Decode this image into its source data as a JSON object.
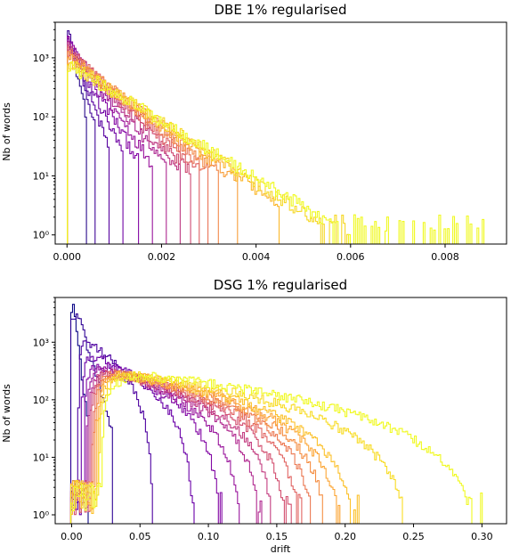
{
  "chart_data": [
    {
      "type": "histogram",
      "title": "DBE 1% regularised",
      "xlabel": "",
      "ylabel": "Nb of words",
      "yscale": "log",
      "xlim": [
        -0.00025,
        0.0093
      ],
      "ylim": [
        0.7,
        4000
      ],
      "xticks": [
        0.0,
        0.002,
        0.004,
        0.006,
        0.008
      ],
      "xtick_labels": [
        "0.000",
        "0.002",
        "0.004",
        "0.006",
        "0.008"
      ],
      "yticks": [
        1,
        10,
        100,
        1000
      ],
      "ytick_labels": [
        "10⁰",
        "10¹",
        "10²",
        "10³"
      ],
      "series_count": 16,
      "colormap": [
        "#2b0c8c",
        "#5b02a3",
        "#8c0aa5",
        "#b52f8c",
        "#d8576b",
        "#f1824e",
        "#fcb32e",
        "#f0f921"
      ],
      "series_peaks": [
        3400,
        3000,
        2600,
        2300,
        2100,
        1900,
        1750,
        1600,
        1450,
        1350,
        1250,
        1150,
        1050,
        950,
        880,
        800
      ],
      "series_scale": [
        0.00012,
        0.00016,
        0.0002,
        0.00026,
        0.00032,
        0.00038,
        0.00044,
        0.0005,
        0.00055,
        0.0006,
        0.00065,
        0.0007,
        0.00075,
        0.0008,
        0.00085,
        0.0009
      ],
      "series_extent": [
        0.0004,
        0.0006,
        0.0009,
        0.0012,
        0.0015,
        0.0018,
        0.0021,
        0.0024,
        0.0026,
        0.0028,
        0.003,
        0.0032,
        0.0036,
        0.0045,
        0.006,
        0.009
      ]
    },
    {
      "type": "histogram",
      "title": "DSG 1% regularised",
      "xlabel": "drift",
      "ylabel": "Nb of words",
      "yscale": "log",
      "xlim": [
        -0.012,
        0.318
      ],
      "ylim": [
        0.7,
        6000
      ],
      "xticks": [
        0.0,
        0.05,
        0.1,
        0.15,
        0.2,
        0.25,
        0.3
      ],
      "xtick_labels": [
        "0.00",
        "0.05",
        "0.10",
        "0.15",
        "0.20",
        "0.25",
        "0.30"
      ],
      "yticks": [
        1,
        10,
        100,
        1000
      ],
      "ytick_labels": [
        "10⁰",
        "10¹",
        "10²",
        "10³"
      ],
      "series_count": 16,
      "colormap": [
        "#0d0887",
        "#41049d",
        "#6a00a8",
        "#8f0da4",
        "#b12a90",
        "#cc4778",
        "#e16462",
        "#f2844b",
        "#fca636",
        "#fcce25",
        "#f0f921"
      ],
      "series_peaks": [
        5500,
        4200,
        1200,
        700,
        500,
        420,
        390,
        370,
        360,
        355,
        350,
        345,
        340,
        335,
        330,
        325
      ],
      "series_start": [
        0.001,
        0.003,
        0.005,
        0.007,
        0.009,
        0.011,
        0.012,
        0.013,
        0.014,
        0.015,
        0.016,
        0.017,
        0.018,
        0.019,
        0.02,
        0.022
      ],
      "series_extent": [
        0.012,
        0.03,
        0.06,
        0.09,
        0.11,
        0.125,
        0.14,
        0.15,
        0.16,
        0.17,
        0.18,
        0.19,
        0.2,
        0.21,
        0.25,
        0.3
      ]
    }
  ]
}
